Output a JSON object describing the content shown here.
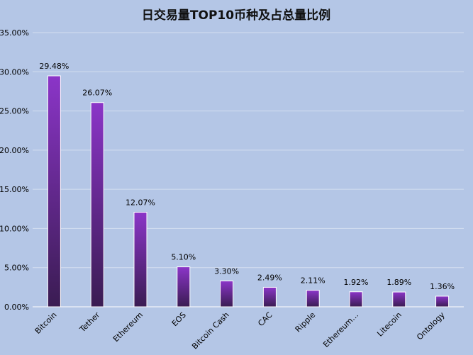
{
  "chart_data": {
    "type": "bar",
    "title": "日交易量TOP10币种及占总量比例",
    "xlabel": "",
    "ylabel": "",
    "ylim": [
      0,
      0.35
    ],
    "yticks": [
      "0.00%",
      "5.00%",
      "10.00%",
      "15.00%",
      "20.00%",
      "25.00%",
      "30.00%",
      "35.00%"
    ],
    "categories": [
      "Bitcoin",
      "Tether",
      "Ethereum",
      "EOS",
      "Bitcoin Cash",
      "CAC",
      "Ripple",
      "Ethereum…",
      "Litecoin",
      "Ontology"
    ],
    "values": [
      0.2948,
      0.2607,
      0.1207,
      0.051,
      0.033,
      0.0249,
      0.0211,
      0.0192,
      0.0189,
      0.0136
    ],
    "data_labels": [
      "29.48%",
      "26.07%",
      "12.07%",
      "5.10%",
      "3.30%",
      "2.49%",
      "2.11%",
      "1.92%",
      "1.89%",
      "1.36%"
    ],
    "grid": true,
    "legend": "none"
  },
  "colors": {
    "background": "#b4c6e6",
    "bar_top": "#8b35c8",
    "bar_bottom": "#3a1c52",
    "bar_border": "#ffffff",
    "gridline": "#d4def0",
    "axis": "#ffffff",
    "text": "#000000"
  }
}
